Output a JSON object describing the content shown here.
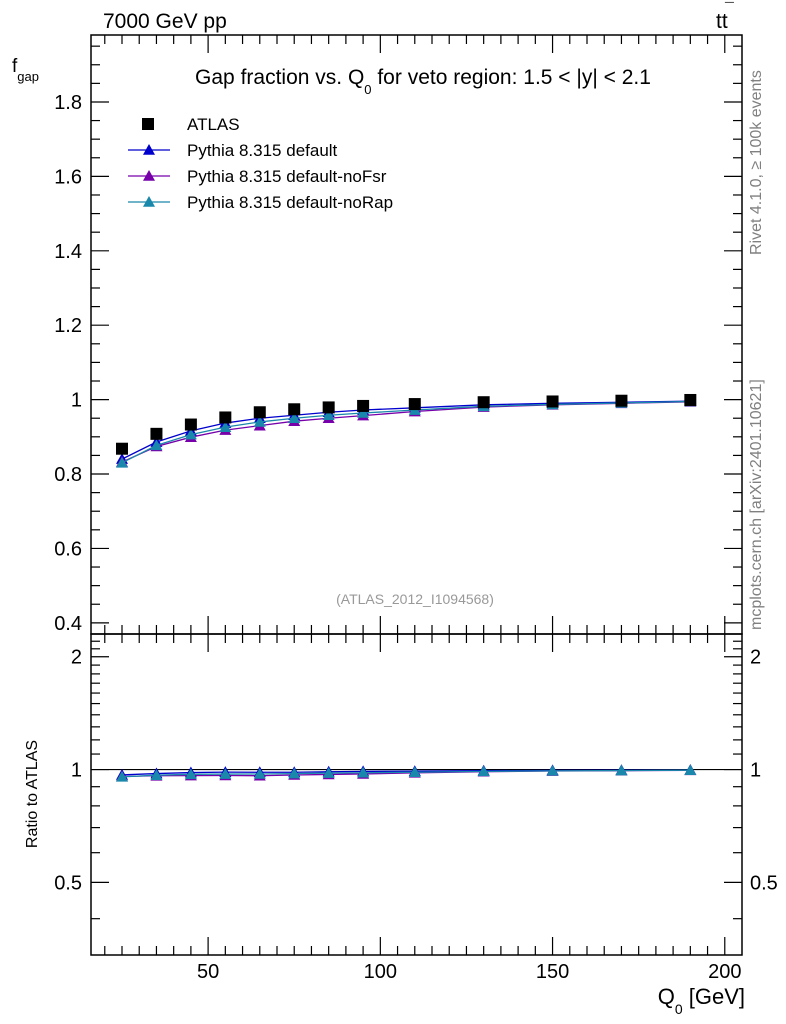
{
  "header": {
    "beam_label": "7000 GeV pp",
    "process_label_main": "tt",
    "process_label_bar": "¯"
  },
  "side_labels": {
    "rivet": "Rivet 4.1.0, ≥ 100k events",
    "mcplots": "mcplots.cern.ch [arXiv:2401.10621]"
  },
  "chart_data": {
    "type": "line",
    "title_parts": {
      "pre": "Gap fraction vs. Q",
      "sub": "0",
      "post": " for veto region: 1.5 < |y| < 2.1"
    },
    "ylabel_main": {
      "base": "f",
      "sub": "gap"
    },
    "ylabel_ratio": "Ratio to ATLAS",
    "xlabel": {
      "base": "Q",
      "sub": "0",
      "post": " [GeV]"
    },
    "analysis_tag": "(ATLAS_2012_I1094568)",
    "xlim": [
      16,
      205
    ],
    "ylim": [
      0.37,
      1.98
    ],
    "ratio_ylim": [
      0.32,
      2.3
    ],
    "ratio_scale": "log",
    "x_ticks": [
      50,
      100,
      150,
      200
    ],
    "x_tick_labels": [
      "50",
      "100",
      "150",
      "200"
    ],
    "y_ticks": [
      0.4,
      0.6,
      0.8,
      1.0,
      1.2,
      1.4,
      1.6,
      1.8
    ],
    "y_tick_labels": [
      "0.4",
      "0.6",
      "0.8",
      "1",
      "1.2",
      "1.4",
      "1.6",
      "1.8"
    ],
    "ratio_ticks": [
      0.5,
      1,
      2
    ],
    "ratio_tick_labels": [
      "0.5",
      "1",
      "2"
    ],
    "x": [
      25,
      35,
      45,
      55,
      65,
      75,
      85,
      95,
      110,
      130,
      150,
      170,
      190
    ],
    "data": {
      "name": "ATLAS",
      "values": [
        0.868,
        0.908,
        0.933,
        0.952,
        0.966,
        0.974,
        0.979,
        0.983,
        0.988,
        0.993,
        0.995,
        0.997,
        0.999
      ]
    },
    "series": [
      {
        "name": "Pythia 8.315 default",
        "color": "#0000cc",
        "values": [
          0.84,
          0.886,
          0.916,
          0.937,
          0.95,
          0.958,
          0.966,
          0.972,
          0.978,
          0.986,
          0.99,
          0.993,
          0.996
        ]
      },
      {
        "name": "Pythia 8.315 default-noFsr",
        "color": "#7700aa",
        "values": [
          0.832,
          0.874,
          0.899,
          0.918,
          0.93,
          0.942,
          0.95,
          0.957,
          0.968,
          0.98,
          0.986,
          0.99,
          0.994
        ]
      },
      {
        "name": "Pythia 8.315 default-noRap",
        "color": "#1a88aa",
        "values": [
          0.83,
          0.877,
          0.906,
          0.926,
          0.94,
          0.95,
          0.958,
          0.964,
          0.972,
          0.982,
          0.987,
          0.991,
          0.995
        ]
      }
    ],
    "legend_position": "top-left"
  }
}
